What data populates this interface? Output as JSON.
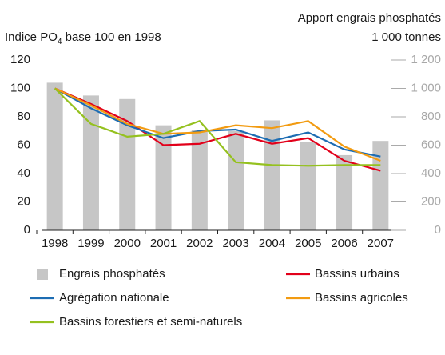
{
  "chart_data": {
    "type": "bar-line",
    "y_label": {
      "text": "Indice PO",
      "sub": "4",
      "rest": " base 100 en 1998"
    },
    "y2_label": [
      "Apport engrais phosphatés",
      "1 000 tonnes"
    ],
    "categories": [
      "1998",
      "1999",
      "2000",
      "2001",
      "2002",
      "2003",
      "2004",
      "2005",
      "2006",
      "2007"
    ],
    "ylim": [
      0,
      120
    ],
    "yticks": [
      0,
      20,
      40,
      60,
      80,
      100,
      120
    ],
    "y2lim": [
      0,
      1200
    ],
    "y2ticks": [
      0,
      200,
      400,
      600,
      800,
      {
        "value": 1000,
        "label": "1 000"
      },
      {
        "value": 1200,
        "label": "1 200"
      }
    ],
    "series": [
      {
        "name": "Engrais phosphatés",
        "type": "bar",
        "axis": "y2",
        "color": "#c6c6c6",
        "values": [
          1040,
          950,
          925,
          740,
          705,
          700,
          775,
          620,
          530,
          630
        ]
      },
      {
        "name": "Bassins urbains",
        "type": "line",
        "color": "#e2001a",
        "values": [
          100,
          89,
          77,
          60,
          61,
          68,
          61,
          65,
          49,
          42
        ]
      },
      {
        "name": "Agrégation nationale",
        "type": "line",
        "color": "#1d6db3",
        "values": [
          100,
          86,
          74,
          65,
          70,
          71,
          63,
          69,
          57,
          52
        ]
      },
      {
        "name": "Bassins agricoles",
        "type": "line",
        "color": "#f29b11",
        "values": [
          100,
          88,
          75,
          68,
          69,
          74,
          72,
          77,
          59,
          49
        ]
      },
      {
        "name": "Bassins forestiers et semi-naturels",
        "type": "line",
        "color": "#95c11f",
        "values": [
          100,
          75,
          66,
          68,
          77,
          48,
          46,
          45.5,
          46,
          46
        ]
      }
    ]
  }
}
